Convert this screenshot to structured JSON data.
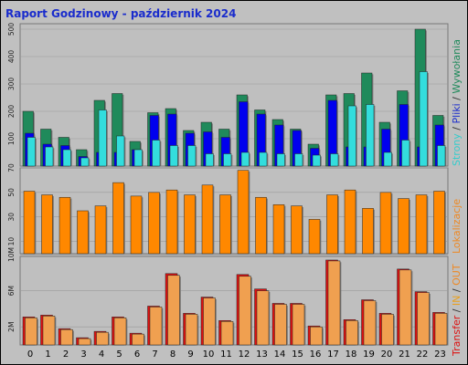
{
  "title": "Raport Godzinowy -  październik 2024",
  "colors": {
    "background": "#c0c0c0",
    "plot": "#bfbfbf",
    "title": "#1a2ccc",
    "strony": "#1f8a5b",
    "pliki": "#0000ee",
    "wywolania": "#33dddd",
    "wizyty": "#ff8800",
    "in": "#dd1111",
    "out": "#f0a050",
    "lokalizacje": "#ee8822"
  },
  "side_labels": {
    "top": {
      "part1": "Strony",
      "sep1": " / ",
      "part2": "Pliki",
      "sep2": " / ",
      "part3": "Wywołania"
    },
    "middle": "Lokalizacje",
    "bottom": {
      "part1": "Transfer",
      "sep1": " / ",
      "part2": "IN",
      "sep2": " / ",
      "part3": "OUT"
    }
  },
  "chart_data": [
    {
      "type": "bar",
      "categories": [
        "0",
        "1",
        "2",
        "3",
        "4",
        "5",
        "6",
        "7",
        "8",
        "9",
        "10",
        "11",
        "12",
        "13",
        "14",
        "15",
        "16",
        "17",
        "18",
        "19",
        "20",
        "21",
        "22",
        "23"
      ],
      "ylim": [
        0,
        520
      ],
      "yticks": [
        "100",
        "200",
        "300",
        "400",
        "500"
      ],
      "series": [
        {
          "name": "Strony",
          "values": [
            200,
            135,
            105,
            60,
            240,
            265,
            90,
            195,
            210,
            130,
            160,
            135,
            260,
            205,
            170,
            135,
            80,
            260,
            265,
            340,
            160,
            275,
            500,
            185
          ]
        },
        {
          "name": "Pliki",
          "values": [
            120,
            80,
            75,
            35,
            50,
            50,
            60,
            185,
            190,
            120,
            125,
            105,
            235,
            190,
            150,
            130,
            65,
            240,
            70,
            70,
            135,
            225,
            70,
            150
          ]
        },
        {
          "name": "Wywołania",
          "values": [
            105,
            70,
            60,
            30,
            205,
            110,
            60,
            95,
            75,
            75,
            45,
            45,
            50,
            50,
            45,
            45,
            40,
            45,
            220,
            225,
            50,
            95,
            345,
            75
          ]
        }
      ]
    },
    {
      "type": "bar",
      "categories": [
        "0",
        "1",
        "2",
        "3",
        "4",
        "5",
        "6",
        "7",
        "8",
        "9",
        "10",
        "11",
        "12",
        "13",
        "14",
        "15",
        "16",
        "17",
        "18",
        "19",
        "20",
        "21",
        "22",
        "23"
      ],
      "ylim": [
        0,
        70
      ],
      "yticks": [
        "10",
        "30",
        "50",
        "70"
      ],
      "series": [
        {
          "name": "Lokalizacje",
          "values": [
            51,
            48,
            46,
            35,
            39,
            58,
            47,
            50,
            52,
            48,
            56,
            48,
            68,
            46,
            40,
            39,
            28,
            48,
            52,
            37,
            50,
            45,
            48,
            51
          ]
        }
      ]
    },
    {
      "type": "bar",
      "categories": [
        "0",
        "1",
        "2",
        "3",
        "4",
        "5",
        "6",
        "7",
        "8",
        "9",
        "10",
        "11",
        "12",
        "13",
        "14",
        "15",
        "16",
        "17",
        "18",
        "19",
        "20",
        "21",
        "22",
        "23"
      ],
      "ylim": [
        0,
        9800000
      ],
      "yticks": [
        "2M",
        "6M",
        "10M"
      ],
      "series": [
        {
          "name": "IN",
          "values": [
            3100000,
            3300000,
            1800000,
            800000,
            1500000,
            3100000,
            1300000,
            4300000,
            7900000,
            3500000,
            5300000,
            2700000,
            7800000,
            6200000,
            4600000,
            4600000,
            2100000,
            9400000,
            2800000,
            5000000,
            3500000,
            8400000,
            5900000,
            3600000
          ]
        },
        {
          "name": "OUT",
          "values": [
            3000000,
            3200000,
            1700000,
            700000,
            1400000,
            3000000,
            1200000,
            4200000,
            7700000,
            3400000,
            5200000,
            2600000,
            7600000,
            6000000,
            4500000,
            4500000,
            2000000,
            9300000,
            2700000,
            4900000,
            3400000,
            8300000,
            5800000,
            3500000
          ]
        }
      ]
    }
  ]
}
